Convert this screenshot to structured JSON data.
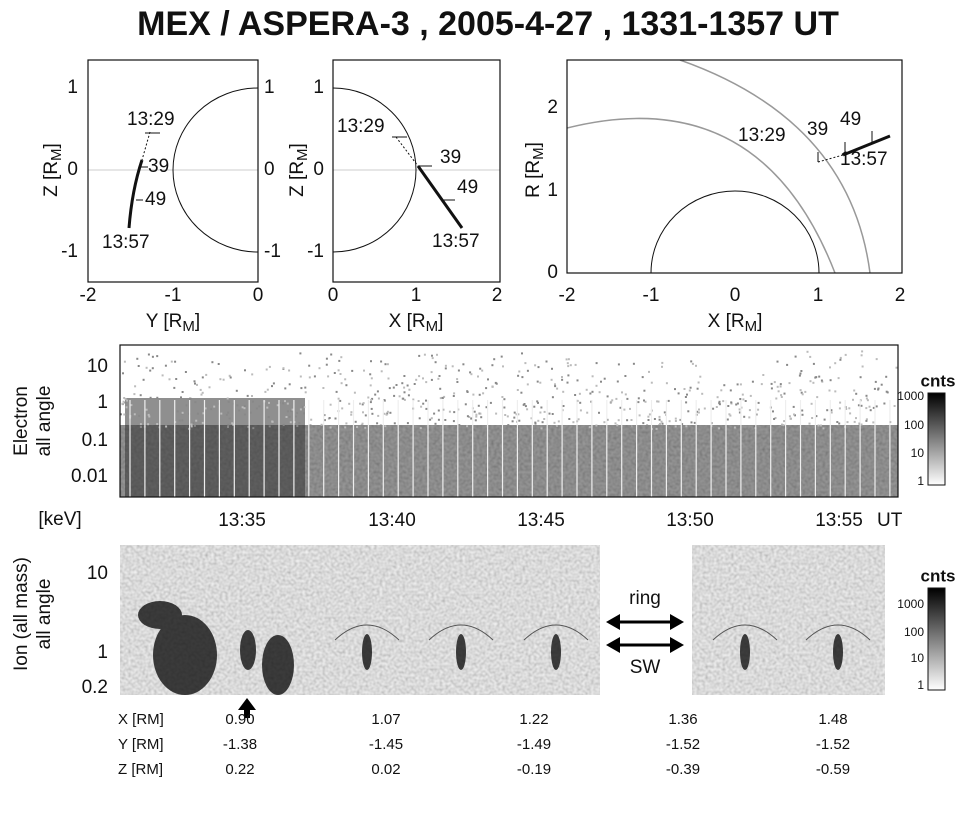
{
  "title": "MEX / ASPERA-3 ,  2005-4-27 , 1331-1357 UT",
  "orbit_panels": [
    {
      "xlabel": {
        "text": "Y [R",
        "sub": "M",
        "end": "]"
      },
      "ylabel": {
        "text": "Z [R",
        "sub": "M",
        "end": "]"
      },
      "xticks": [
        "-2",
        "-1",
        "0"
      ],
      "yticks": [
        "1",
        "0",
        "-1"
      ],
      "right_ticks": [
        "1",
        "0",
        "-1"
      ],
      "annotations": [
        "13:29",
        "39",
        "49",
        "13:57"
      ]
    },
    {
      "xlabel": {
        "text": "X [R",
        "sub": "M",
        "end": "]"
      },
      "ylabel": {
        "text": "Z [R",
        "sub": "M",
        "end": "]"
      },
      "xticks": [
        "0",
        "1",
        "2"
      ],
      "yticks": [
        "1",
        "0",
        "-1"
      ],
      "annotations": [
        "13:29",
        "39",
        "49",
        "13:57"
      ]
    },
    {
      "xlabel": {
        "text": "X [R",
        "sub": "M",
        "end": "]"
      },
      "ylabel": {
        "text": "R [R",
        "sub": "M",
        "end": "]"
      },
      "xticks": [
        "-2",
        "-1",
        "0",
        "1",
        "2"
      ],
      "yticks": [
        "2",
        "1",
        "0"
      ],
      "annotations": [
        "13:29",
        "39",
        "49",
        "13:57"
      ]
    }
  ],
  "electron": {
    "ylabel": [
      "Electron",
      "all angle"
    ],
    "yticks": [
      "10",
      "1",
      "0.1",
      "0.01"
    ],
    "colorbar": {
      "title": "cnts",
      "ticks": [
        "1000",
        "100",
        "10",
        "1"
      ]
    }
  },
  "time_axis": {
    "ticks": [
      "13:35",
      "13:40",
      "13:45",
      "13:50",
      "13:55"
    ],
    "unit": "UT"
  },
  "ion": {
    "unit": "[keV]",
    "ylabel": [
      "Ion (all mass)",
      "all angle"
    ],
    "yticks": [
      "10",
      "1",
      "0.2"
    ],
    "annotations": [
      "ring",
      "SW"
    ],
    "colorbar": {
      "title": "cnts",
      "ticks": [
        "1000",
        "100",
        "10",
        "1"
      ]
    }
  },
  "positions": {
    "rows": [
      {
        "label": "X [RM]",
        "values": [
          "0.90",
          "1.07",
          "1.22",
          "1.36",
          "1.48"
        ]
      },
      {
        "label": "Y [RM]",
        "values": [
          "-1.38",
          "-1.45",
          "-1.49",
          "-1.52",
          "-1.52"
        ]
      },
      {
        "label": "Z [RM]",
        "values": [
          "0.22",
          "0.02",
          "-0.19",
          "-0.39",
          "-0.59"
        ]
      }
    ]
  }
}
